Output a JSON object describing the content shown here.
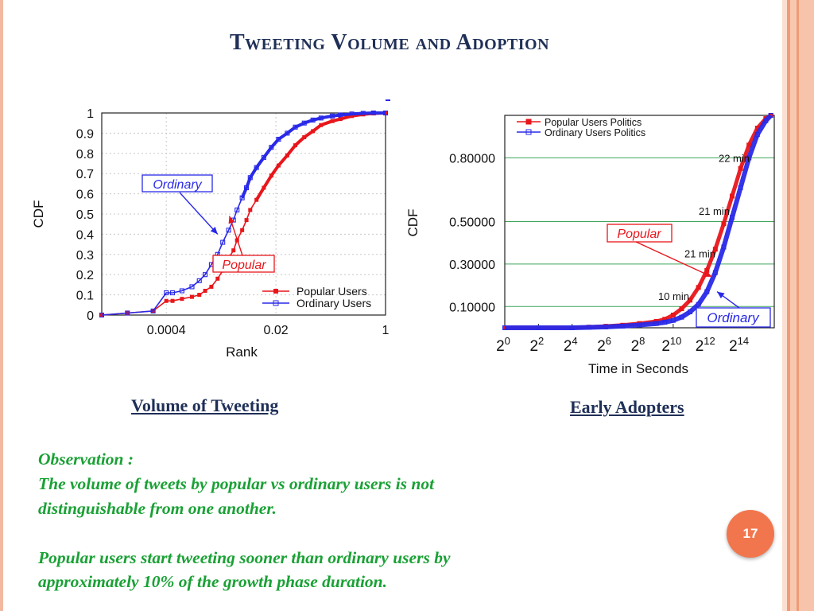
{
  "slide": {
    "title": "Tweeting Volume and Adoption",
    "page_number": "17",
    "accent_color": "#f2764d",
    "title_color": "#1f2f57",
    "observation_color": "#1aa135"
  },
  "captions": {
    "left": "Volume of Tweeting",
    "right": "Early Adopters"
  },
  "observation": {
    "label": "Observation :",
    "line1": "The volume of tweets by popular vs ordinary users is not",
    "line2": "distinguishable from one another.",
    "line3": "Popular users start tweeting sooner than ordinary users by",
    "line4": "approximately 10% of the growth phase duration."
  },
  "chart_data": [
    {
      "type": "line",
      "title": "",
      "xlabel": "Rank",
      "ylabel": "CDF",
      "x_scale": "log",
      "x_ticks": [
        "0.0004",
        "0.02",
        "1"
      ],
      "x_tick_values": [
        0.0004,
        0.02,
        1
      ],
      "xlim": [
        4e-05,
        1
      ],
      "y_ticks": [
        "0",
        "0.1",
        "0.2",
        "0.3",
        "0.4",
        "0.5",
        "0.6",
        "0.7",
        "0.8",
        "0.9",
        "1"
      ],
      "ylim": [
        0,
        1
      ],
      "grid": true,
      "legend": "bottom-right",
      "series": [
        {
          "name": "Popular Users",
          "color": "#e8161b",
          "x": [
            4e-05,
            0.0001,
            0.00025,
            0.0004,
            0.0005,
            0.0007,
            0.001,
            0.0013,
            0.0016,
            0.002,
            0.0025,
            0.003,
            0.0037,
            0.0044,
            0.005,
            0.006,
            0.007,
            0.008,
            0.01,
            0.013,
            0.017,
            0.022,
            0.03,
            0.04,
            0.055,
            0.075,
            0.1,
            0.15,
            0.2,
            0.3,
            0.45,
            0.65,
            1
          ],
          "y": [
            0.0,
            0.01,
            0.02,
            0.07,
            0.07,
            0.08,
            0.09,
            0.1,
            0.12,
            0.14,
            0.18,
            0.22,
            0.28,
            0.32,
            0.37,
            0.42,
            0.47,
            0.52,
            0.57,
            0.63,
            0.69,
            0.74,
            0.79,
            0.84,
            0.88,
            0.91,
            0.94,
            0.96,
            0.97,
            0.985,
            0.993,
            0.998,
            1.0
          ]
        },
        {
          "name": "Ordinary Users",
          "color": "#2929e8",
          "x": [
            4e-05,
            0.0001,
            0.00025,
            0.0004,
            0.0005,
            0.0007,
            0.001,
            0.0013,
            0.0016,
            0.002,
            0.0025,
            0.003,
            0.0037,
            0.0044,
            0.005,
            0.006,
            0.007,
            0.008,
            0.01,
            0.013,
            0.017,
            0.022,
            0.03,
            0.04,
            0.055,
            0.075,
            0.1,
            0.15,
            0.2,
            0.3,
            0.45,
            0.65,
            1
          ],
          "y": [
            0.0,
            0.01,
            0.02,
            0.11,
            0.11,
            0.12,
            0.14,
            0.17,
            0.2,
            0.25,
            0.3,
            0.36,
            0.42,
            0.47,
            0.52,
            0.58,
            0.63,
            0.68,
            0.73,
            0.78,
            0.83,
            0.87,
            0.9,
            0.93,
            0.95,
            0.965,
            0.975,
            0.985,
            0.99,
            0.995,
            0.998,
            1.0,
            1.0
          ]
        }
      ],
      "annotations": [
        {
          "text": "Ordinary",
          "color": "#2929e8",
          "arrow_to": {
            "x": 0.0025,
            "y": 0.4
          }
        },
        {
          "text": "Popular",
          "color": "#e8161b",
          "arrow_to": {
            "x": 0.0038,
            "y": 0.49
          }
        }
      ]
    },
    {
      "type": "line",
      "title": "",
      "xlabel": "Time in Seconds",
      "ylabel": "CDF",
      "x_scale": "log2",
      "x_ticks": [
        "2^0",
        "2^2",
        "2^4",
        "2^6",
        "2^8",
        "2^10",
        "2^12",
        "2^14"
      ],
      "x_tick_exponents": [
        0,
        2,
        4,
        6,
        8,
        10,
        12,
        14
      ],
      "xlim_exponent": [
        0,
        16
      ],
      "y_ticks": [
        "0.10000",
        "0.30000",
        "0.50000",
        "0.80000"
      ],
      "y_tick_values": [
        0.1,
        0.3,
        0.5,
        0.8
      ],
      "ylim": [
        0,
        1
      ],
      "grid": true,
      "legend": "top-left",
      "series": [
        {
          "name": "Popular Users Politics",
          "color": "#e8161b",
          "x_exponent": [
            0,
            2,
            4,
            5,
            6,
            7,
            8,
            9,
            9.5,
            10,
            10.5,
            11,
            11.5,
            12,
            12.5,
            13,
            13.5,
            14,
            14.5,
            15,
            15.5,
            15.8
          ],
          "y": [
            0.0,
            0.0,
            0.0,
            0.003,
            0.007,
            0.012,
            0.02,
            0.03,
            0.04,
            0.06,
            0.09,
            0.13,
            0.19,
            0.27,
            0.37,
            0.49,
            0.62,
            0.75,
            0.86,
            0.94,
            0.985,
            1.0
          ]
        },
        {
          "name": "Ordinary Users Politics",
          "color": "#2929e8",
          "x_exponent": [
            0,
            2,
            4,
            5,
            6,
            7,
            8,
            9,
            9.5,
            10,
            10.5,
            11,
            11.5,
            12,
            12.5,
            13,
            13.5,
            14,
            14.5,
            15,
            15.5,
            15.8
          ],
          "y": [
            0.0,
            0.0,
            0.0,
            0.002,
            0.004,
            0.008,
            0.013,
            0.02,
            0.026,
            0.035,
            0.05,
            0.075,
            0.11,
            0.17,
            0.26,
            0.38,
            0.52,
            0.66,
            0.8,
            0.91,
            0.975,
            1.0
          ]
        }
      ],
      "annotations": [
        {
          "text": "22 min",
          "y": 0.8
        },
        {
          "text": "21 min",
          "y": 0.55
        },
        {
          "text": "21 min",
          "y": 0.35
        },
        {
          "text": "10 min",
          "y": 0.15
        },
        {
          "text": "Popular",
          "color": "#e8161b",
          "arrow_to": {
            "x_exponent": 12.3,
            "y": 0.24
          }
        },
        {
          "text": "Ordinary",
          "color": "#2929e8",
          "arrow_to": {
            "x_exponent": 12.6,
            "y": 0.17
          }
        }
      ]
    }
  ]
}
